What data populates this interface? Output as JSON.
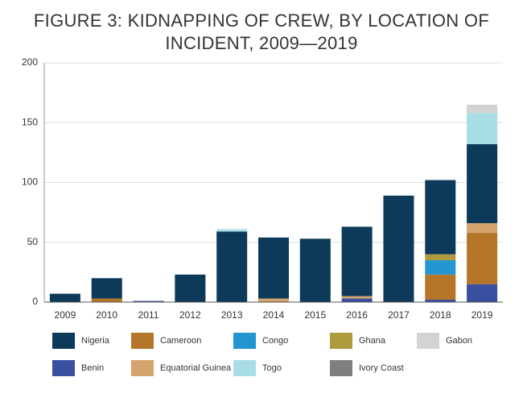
{
  "chart_data": {
    "type": "bar",
    "stacked": true,
    "title": "FIGURE 3: KIDNAPPING OF CREW, BY LOCATION OF INCIDENT, 2009—2019",
    "categories": [
      "2009",
      "2010",
      "2011",
      "2012",
      "2013",
      "2014",
      "2015",
      "2016",
      "2017",
      "2018",
      "2019"
    ],
    "series": [
      {
        "name": "Nigeria",
        "color": "#0d3a5a",
        "values": [
          7,
          17,
          0,
          23,
          59,
          51,
          53,
          58,
          89,
          62,
          66
        ]
      },
      {
        "name": "Cameroon",
        "color": "#b5762a",
        "values": [
          0,
          3,
          0,
          0,
          0,
          0,
          0,
          0,
          0,
          21,
          43
        ]
      },
      {
        "name": "Congo",
        "color": "#2396d1",
        "values": [
          0,
          0,
          0,
          0,
          0,
          0,
          0,
          0,
          0,
          12,
          0
        ]
      },
      {
        "name": "Ghana",
        "color": "#b09a3e",
        "values": [
          0,
          0,
          0,
          0,
          0,
          0,
          0,
          0,
          0,
          5,
          0
        ]
      },
      {
        "name": "Gabon",
        "color": "#d3d3d3",
        "values": [
          0,
          0,
          0,
          0,
          0,
          0,
          0,
          0,
          0,
          0,
          7
        ]
      },
      {
        "name": "Benin",
        "color": "#3a4fa0",
        "values": [
          0,
          0,
          1,
          0,
          0,
          0,
          0,
          3,
          0,
          2,
          15
        ]
      },
      {
        "name": "Equatorial Guinea",
        "color": "#d4a46c",
        "values": [
          0,
          0,
          0,
          0,
          0,
          3,
          0,
          2,
          0,
          0,
          8
        ]
      },
      {
        "name": "Togo",
        "color": "#a8dde6",
        "values": [
          0,
          0,
          0,
          0,
          2,
          0,
          0,
          0,
          0,
          0,
          26
        ]
      },
      {
        "name": "Ivory Coast",
        "color": "#7f7f7f",
        "values": [
          0,
          0,
          0,
          0,
          0,
          0,
          0,
          0,
          0,
          0,
          0
        ]
      }
    ],
    "ylim": [
      0,
      200
    ],
    "yticks": [
      0,
      50,
      100,
      150,
      200
    ],
    "grid": true
  }
}
